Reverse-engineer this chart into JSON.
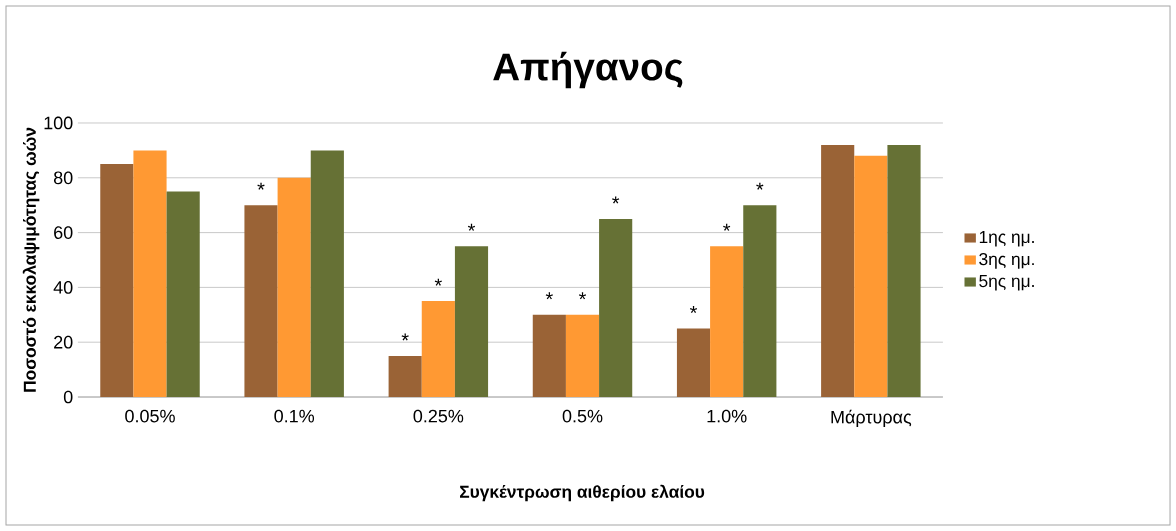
{
  "chart_data": {
    "type": "bar",
    "title": "Απήγανος",
    "xlabel": "Συγκέντρωση αιθερίου ελαίου",
    "ylabel": "Ποσοστό εκκολαψιμότητας ωών",
    "categories": [
      "0.05%",
      "0.1%",
      "0.25%",
      "0.5%",
      "1.0%",
      "Μάρτυρας"
    ],
    "series": [
      {
        "name": "1ης ημ.",
        "color": "#9a6336",
        "values": [
          85,
          70,
          15,
          30,
          25,
          92
        ],
        "value_labels": [
          null,
          "*",
          "*",
          "*",
          "*",
          null
        ]
      },
      {
        "name": "3ης ημ.",
        "color": "#ff9933",
        "values": [
          90,
          80,
          35,
          30,
          55,
          88
        ],
        "value_labels": [
          null,
          null,
          "*",
          "*",
          "*",
          null
        ]
      },
      {
        "name": "5ης ημ.",
        "color": "#667135",
        "values": [
          75,
          90,
          55,
          65,
          70,
          92
        ],
        "value_labels": [
          null,
          null,
          "*",
          "*",
          "*",
          null
        ]
      }
    ],
    "ylim": [
      0,
      100
    ],
    "yticks": [
      0,
      20,
      40,
      60,
      80,
      100
    ],
    "grid": "y",
    "legend": "right"
  }
}
